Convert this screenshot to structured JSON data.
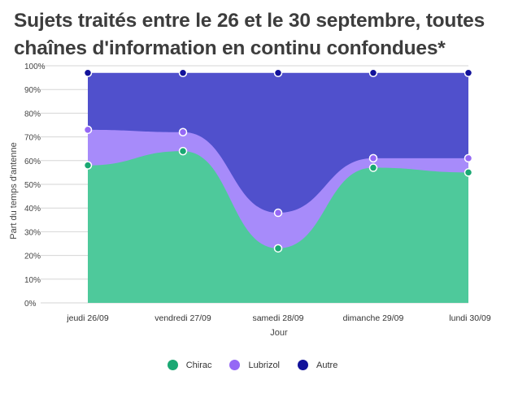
{
  "title": "Sujets traités entre le 26 et le 30 septembre, toutes chaînes d'information en continu confondues*",
  "chart_data": {
    "type": "area",
    "stacked": true,
    "title": "Sujets traités entre le 26 et le 30 septembre, toutes chaînes d'information en continu confondues*",
    "xlabel": "Jour",
    "ylabel": "Part du temps d'antenne",
    "categories": [
      "jeudi 26/09",
      "vendredi 27/09",
      "samedi 28/09",
      "dimanche 29/09",
      "lundi 30/09"
    ],
    "y_ticks": [
      "0%",
      "10%",
      "20%",
      "30%",
      "40%",
      "50%",
      "60%",
      "70%",
      "80%",
      "90%",
      "100%"
    ],
    "ylim": [
      0,
      100
    ],
    "series": [
      {
        "name": "Chirac",
        "values": [
          58,
          64,
          23,
          57,
          55
        ],
        "color": "#4ec99b",
        "marker_color": "#1aa873"
      },
      {
        "name": "Lubrizol",
        "values": [
          15,
          8,
          15,
          4,
          6
        ],
        "color": "#a78bfa",
        "marker_color": "#9568f5"
      },
      {
        "name": "Autre",
        "values": [
          24,
          25,
          59,
          36,
          36
        ],
        "color": "#5050cc",
        "marker_color": "#12129a"
      }
    ],
    "legend_position": "bottom",
    "grid": true
  }
}
